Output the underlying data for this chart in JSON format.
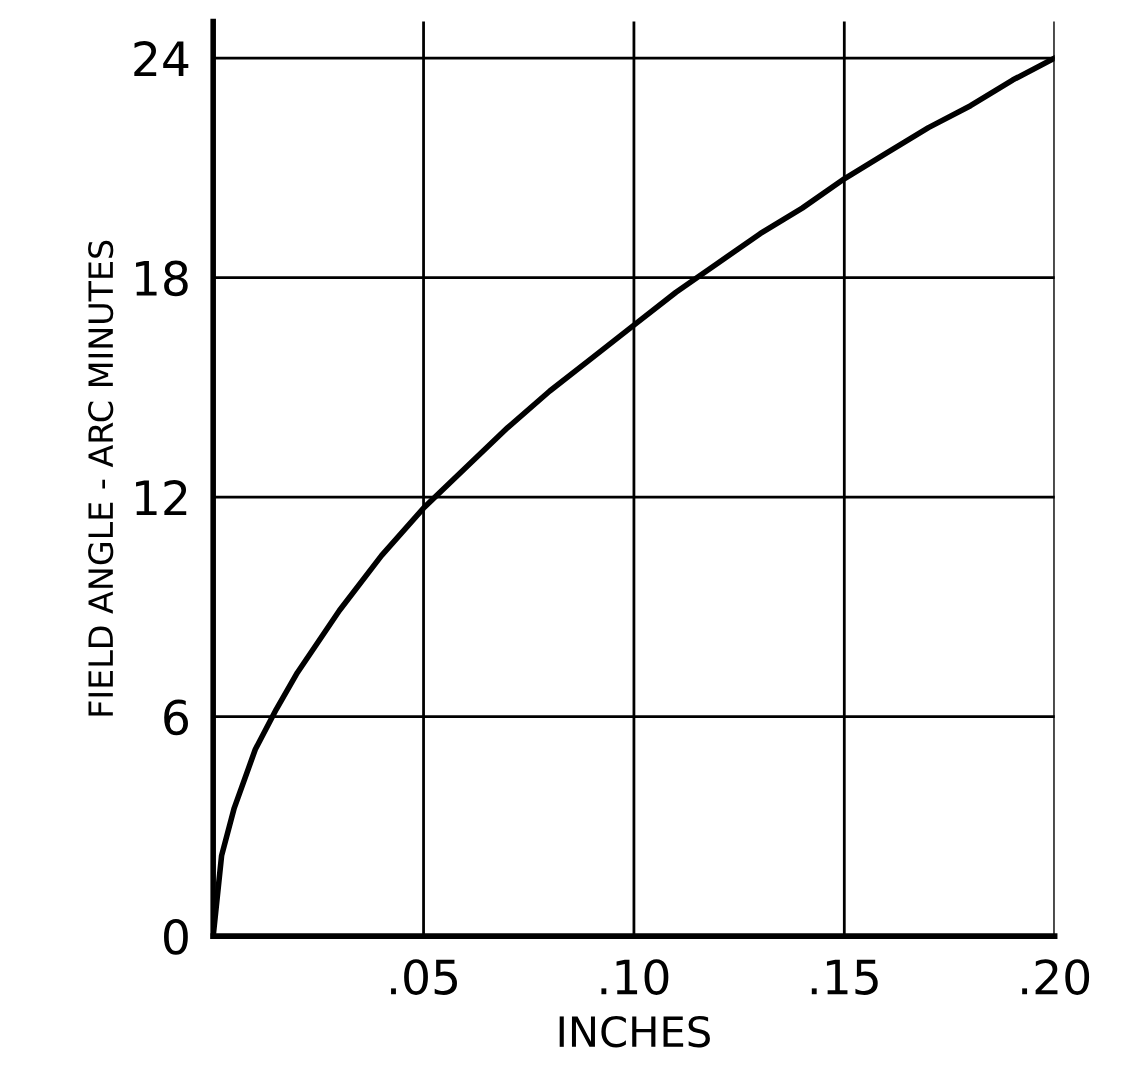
{
  "chart_data": {
    "type": "line",
    "xlabel": "INCHES",
    "ylabel": "FIELD ANGLE - ARC MINUTES",
    "x": [
      0,
      0.002,
      0.005,
      0.01,
      0.015,
      0.02,
      0.03,
      0.04,
      0.05,
      0.06,
      0.07,
      0.08,
      0.09,
      0.1,
      0.11,
      0.12,
      0.13,
      0.14,
      0.15,
      0.16,
      0.17,
      0.18,
      0.19,
      0.2
    ],
    "series": [
      {
        "color": "#000000",
        "values": [
          0,
          2.2,
          3.5,
          5.1,
          6.2,
          7.2,
          8.9,
          10.4,
          11.7,
          12.8,
          13.9,
          14.9,
          15.8,
          16.7,
          17.6,
          18.4,
          19.2,
          19.9,
          20.7,
          21.4,
          22.1,
          22.7,
          23.4,
          24
        ]
      }
    ],
    "xlim": [
      0,
      0.2
    ],
    "ylim": [
      0,
      25
    ],
    "xticks": [
      {
        "value": 0,
        "label": null
      },
      {
        "value": 0.05,
        "label": ".05"
      },
      {
        "value": 0.1,
        "label": ".10"
      },
      {
        "value": 0.15,
        "label": ".15"
      },
      {
        "value": 0.2,
        "label": ".20"
      }
    ],
    "yticks": [
      0,
      6,
      12,
      18,
      24
    ],
    "grid": true,
    "marker": "none",
    "line_style": "solid"
  }
}
